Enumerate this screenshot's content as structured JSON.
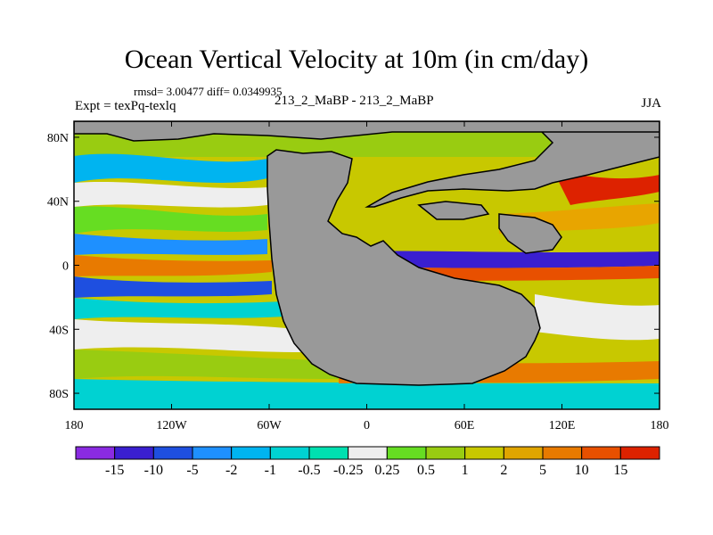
{
  "chart_data": {
    "type": "heatmap",
    "title": "Ocean Vertical Velocity at 10m (in cm/day)",
    "stats": "rmsd= 3.00477 diff= 0.0349935",
    "experiment": "Expt = texPq-texlq",
    "case_label": "213_2_MaBP - 213_2_MaBP",
    "season": "JJA",
    "x_ticks": [
      "180",
      "120W",
      "60W",
      "0",
      "60E",
      "120E",
      "180"
    ],
    "x_values": [
      -180,
      -120,
      -60,
      0,
      60,
      120,
      180
    ],
    "y_ticks": [
      "80N",
      "40N",
      "0",
      "40S",
      "80S"
    ],
    "y_values": [
      80,
      40,
      0,
      -40,
      -80
    ],
    "xlim": [
      -180,
      180
    ],
    "ylim": [
      -90,
      90
    ],
    "colorbar": {
      "labels": [
        "-15",
        "-10",
        "-5",
        "-2",
        "-1",
        "-0.5",
        "-0.25",
        "0.25",
        "0.5",
        "1",
        "2",
        "5",
        "10",
        "15"
      ],
      "colors": [
        "#8a2be2",
        "#3a1fd0",
        "#1e4fe0",
        "#1e90ff",
        "#00b4f0",
        "#00d2d2",
        "#00e0b0",
        "#eeeeee",
        "#66dd22",
        "#99cc11",
        "#c8c800",
        "#e0a500",
        "#e87a00",
        "#e85000",
        "#dd2200"
      ]
    },
    "land_color": "#999999"
  }
}
